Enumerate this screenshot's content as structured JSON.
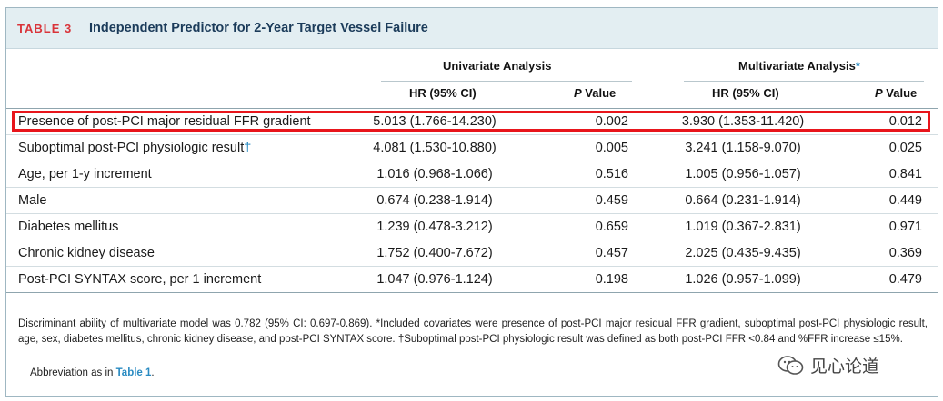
{
  "table": {
    "label": "TABLE 3",
    "title": "Independent Predictor for 2-Year Target Vessel Failure",
    "groups": {
      "univariate": "Univariate Analysis",
      "multivariate": "Multivariate Analysis",
      "multivariate_mark": "*"
    },
    "columns": {
      "hr1": "HR (95% CI)",
      "p1": "P",
      "p1_suffix": " Value",
      "hr2": "HR (95% CI)",
      "p2": "P",
      "p2_suffix": " Value"
    },
    "rows": [
      {
        "variable": "Presence of post-PCI major residual FFR gradient",
        "mark": "",
        "hr_uni": "5.013 (1.766-14.230)",
        "p_uni": "0.002",
        "hr_multi": "3.930 (1.353-11.420)",
        "p_multi": "0.012"
      },
      {
        "variable": "Suboptimal post-PCI physiologic result",
        "mark": "†",
        "hr_uni": "4.081 (1.530-10.880)",
        "p_uni": "0.005",
        "hr_multi": "3.241 (1.158-9.070)",
        "p_multi": "0.025"
      },
      {
        "variable": "Age, per 1-y increment",
        "mark": "",
        "hr_uni": "1.016 (0.968-1.066)",
        "p_uni": "0.516",
        "hr_multi": "1.005 (0.956-1.057)",
        "p_multi": "0.841"
      },
      {
        "variable": "Male",
        "mark": "",
        "hr_uni": "0.674 (0.238-1.914)",
        "p_uni": "0.459",
        "hr_multi": "0.664 (0.231-1.914)",
        "p_multi": "0.449"
      },
      {
        "variable": "Diabetes mellitus",
        "mark": "",
        "hr_uni": "1.239 (0.478-3.212)",
        "p_uni": "0.659",
        "hr_multi": "1.019 (0.367-2.831)",
        "p_multi": "0.971"
      },
      {
        "variable": "Chronic kidney disease",
        "mark": "",
        "hr_uni": "1.752 (0.400-7.672)",
        "p_uni": "0.457",
        "hr_multi": "2.025 (0.435-9.435)",
        "p_multi": "0.369"
      },
      {
        "variable": "Post-PCI SYNTAX score, per 1 increment",
        "mark": "",
        "hr_uni": "1.047 (0.976-1.124)",
        "p_uni": "0.198",
        "hr_multi": "1.026 (0.957-1.099)",
        "p_multi": "0.479"
      }
    ],
    "footnote": "Discriminant ability of multivariate model was 0.782 (95% CI: 0.697-0.869). *Included covariates were presence of post-PCI major residual FFR gradient, suboptimal post-PCI physiologic result, age, sex, diabetes mellitus, chronic kidney disease, and post-PCI SYNTAX score. †Suboptimal post-PCI physiologic result was defined as both post-PCI FFR <0.84 and %FFR increase ≤15%.",
    "abbreviation_prefix": "Abbreviation as in ",
    "abbreviation_link": "Table 1",
    "abbreviation_suffix": "."
  },
  "watermark": {
    "text": "见心论道",
    "icon": "wechat-icon"
  },
  "colors": {
    "label": "#d9343a",
    "title": "#1b3b5a",
    "accent": "#2a8bc2",
    "highlight": "#e8151b",
    "header_bg": "#e3eef2"
  }
}
